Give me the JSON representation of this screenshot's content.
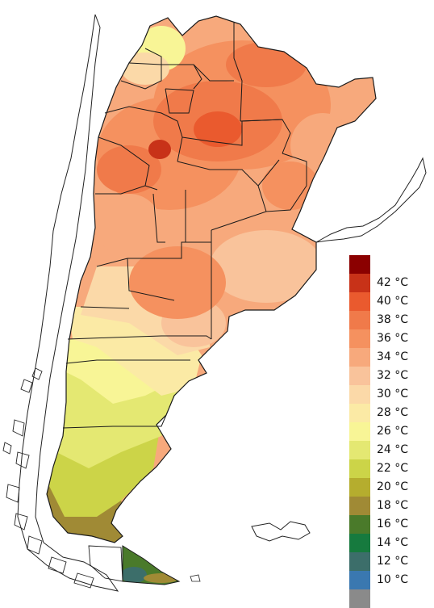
{
  "legend": {
    "items": [
      {
        "label": "",
        "color": "#8b0000"
      },
      {
        "label": "42 °C",
        "color": "#c83218"
      },
      {
        "label": "40 °C",
        "color": "#ea5a2e"
      },
      {
        "label": "38 °C",
        "color": "#f07a4a"
      },
      {
        "label": "36 °C",
        "color": "#f5915f"
      },
      {
        "label": "34 °C",
        "color": "#f7a97c"
      },
      {
        "label": "32 °C",
        "color": "#f9c39b"
      },
      {
        "label": "30 °C",
        "color": "#fbd9a8"
      },
      {
        "label": "28 °C",
        "color": "#fbeaa5"
      },
      {
        "label": "26 °C",
        "color": "#f8f596"
      },
      {
        "label": "24 °C",
        "color": "#e4e872"
      },
      {
        "label": "22 °C",
        "color": "#ccd448"
      },
      {
        "label": "20 °C",
        "color": "#b5ad2e"
      },
      {
        "label": "18 °C",
        "color": "#a08a35"
      },
      {
        "label": "16 °C",
        "color": "#4a7a2a"
      },
      {
        "label": "14 °C",
        "color": "#167a3e"
      },
      {
        "label": "12 °C",
        "color": "#3c6e6a"
      },
      {
        "label": "10 °C",
        "color": "#3a78b0"
      },
      {
        "label": "",
        "color": "#8a8a8a"
      }
    ]
  }
}
